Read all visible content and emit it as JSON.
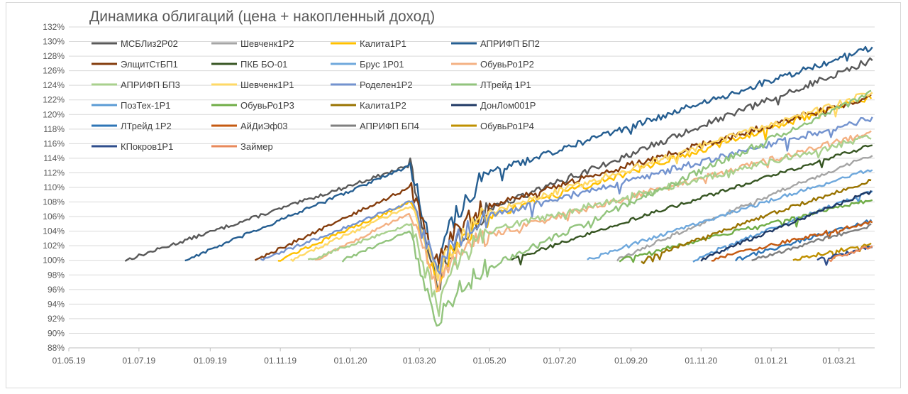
{
  "chart_data": {
    "type": "line",
    "title": "Динамика облигаций (цена + накопленный доход)",
    "xlabel": "",
    "ylabel": "",
    "x_ticks": [
      "01.05.19",
      "01.07.19",
      "01.09.19",
      "01.11.19",
      "01.01.20",
      "01.03.20",
      "01.05.20",
      "01.07.20",
      "01.09.20",
      "01.11.20",
      "01.01.21",
      "01.03.21"
    ],
    "y_ticks": [
      "88%",
      "90%",
      "92%",
      "94%",
      "96%",
      "98%",
      "100%",
      "102%",
      "104%",
      "106%",
      "108%",
      "110%",
      "112%",
      "114%",
      "116%",
      "118%",
      "120%",
      "122%",
      "124%",
      "126%",
      "128%",
      "130%",
      "132%"
    ],
    "xlim": [
      "2019-05-01",
      "2021-04-01"
    ],
    "ylim": [
      88,
      132
    ],
    "grid": "horizontal",
    "legend_position": "top-left",
    "crash_date": "2020-03-18",
    "crash_recovery_date": "2020-04-30",
    "series": [
      {
        "name": "МСБЛиз2Р02",
        "color": "#595959",
        "start": "2019-06-19",
        "pre": 113.0,
        "crash_low": 95.0,
        "recover": 107.0,
        "end_value": 127.5
      },
      {
        "name": "Шевченк1Р2",
        "color": "#a5a5a5",
        "start": "2020-08-20",
        "pre": null,
        "crash_low": null,
        "recover": null,
        "end_value": 114.5
      },
      {
        "name": "Калита1Р1",
        "color": "#ffc000",
        "start": "2019-10-30",
        "pre": 108.0,
        "crash_low": 96.0,
        "recover": 106.0,
        "end_value": 122.5
      },
      {
        "name": "АПРИФП БП2",
        "color": "#255e91",
        "start": "2019-08-10",
        "pre": 113.0,
        "crash_low": 98.0,
        "recover": 112.0,
        "end_value": 129.2
      },
      {
        "name": "ЭлщитСтБП1",
        "color": "#843c0c",
        "start": "2019-10-10",
        "pre": 110.0,
        "crash_low": 99.0,
        "recover": 107.5,
        "end_value": 122.5
      },
      {
        "name": "ПКБ БО-01",
        "color": "#375623",
        "start": "2020-05-20",
        "pre": null,
        "crash_low": null,
        "recover": null,
        "end_value": 115.8
      },
      {
        "name": "Брус 1Р01",
        "color": "#6fa8dc",
        "start": "2020-07-25",
        "pre": null,
        "crash_low": null,
        "recover": null,
        "end_value": 112.5
      },
      {
        "name": "ОбувьРо1Р2",
        "color": "#f4b183",
        "start": "2019-12-01",
        "pre": 106.5,
        "crash_low": 96.0,
        "recover": 103.5,
        "end_value": 117.5
      },
      {
        "name": "АПРИФП БП3",
        "color": "#a9d18e",
        "start": "2019-11-25",
        "pre": 105.0,
        "crash_low": 93.0,
        "recover": 104.0,
        "end_value": 117.0
      },
      {
        "name": "Шевченк1Р1",
        "color": "#ffd966",
        "start": "2019-11-10",
        "pre": 107.5,
        "crash_low": 97.0,
        "recover": 106.5,
        "end_value": 123.0
      },
      {
        "name": "Роделен1Р2",
        "color": "#7393cf",
        "start": "2019-10-15",
        "pre": 108.0,
        "crash_low": 98.0,
        "recover": 106.0,
        "end_value": 119.5
      },
      {
        "name": "ЛТрейд 1Р1",
        "color": "#92c47d",
        "start": "2019-12-25",
        "pre": 104.0,
        "crash_low": 90.5,
        "recover": 99.0,
        "end_value": 123.0
      },
      {
        "name": "ПозТех-1Р1",
        "color": "#5b9bd5",
        "start": "2020-10-25",
        "pre": null,
        "crash_low": null,
        "recover": null,
        "end_value": 109.5
      },
      {
        "name": "ОбувьРо1Р3",
        "color": "#70ad47",
        "start": "2020-08-22",
        "pre": null,
        "crash_low": null,
        "recover": null,
        "end_value": 108.3
      },
      {
        "name": "Калита1Р2",
        "color": "#997300",
        "start": "2020-09-10",
        "pre": null,
        "crash_low": null,
        "recover": null,
        "end_value": 111.0
      },
      {
        "name": "ДонЛом001Р",
        "color": "#1f3864",
        "start": "2020-11-01",
        "pre": null,
        "crash_low": null,
        "recover": null,
        "end_value": 109.5
      },
      {
        "name": "ЛТрейд 1Р2",
        "color": "#2e75b6",
        "start": "2020-12-01",
        "pre": null,
        "crash_low": null,
        "recover": null,
        "end_value": 105.5
      },
      {
        "name": "АйДиЭф03",
        "color": "#c55a11",
        "start": "2020-11-10",
        "pre": null,
        "crash_low": null,
        "recover": null,
        "end_value": 105.3
      },
      {
        "name": "АПРИФП БП4",
        "color": "#7f7f7f",
        "start": "2020-12-15",
        "pre": null,
        "crash_low": null,
        "recover": null,
        "end_value": 104.8
      },
      {
        "name": "ОбувьРо1Р4",
        "color": "#bf9000",
        "start": "2021-01-20",
        "pre": null,
        "crash_low": null,
        "recover": null,
        "end_value": 102.3
      },
      {
        "name": "КПокров1Р1",
        "color": "#2f4e8c",
        "start": "2021-02-10",
        "pre": null,
        "crash_low": null,
        "recover": null,
        "end_value": 101.8
      },
      {
        "name": "Займер",
        "color": "#e8895a",
        "start": "2021-02-20",
        "pre": null,
        "crash_low": null,
        "recover": null,
        "end_value": 102.0
      }
    ]
  }
}
